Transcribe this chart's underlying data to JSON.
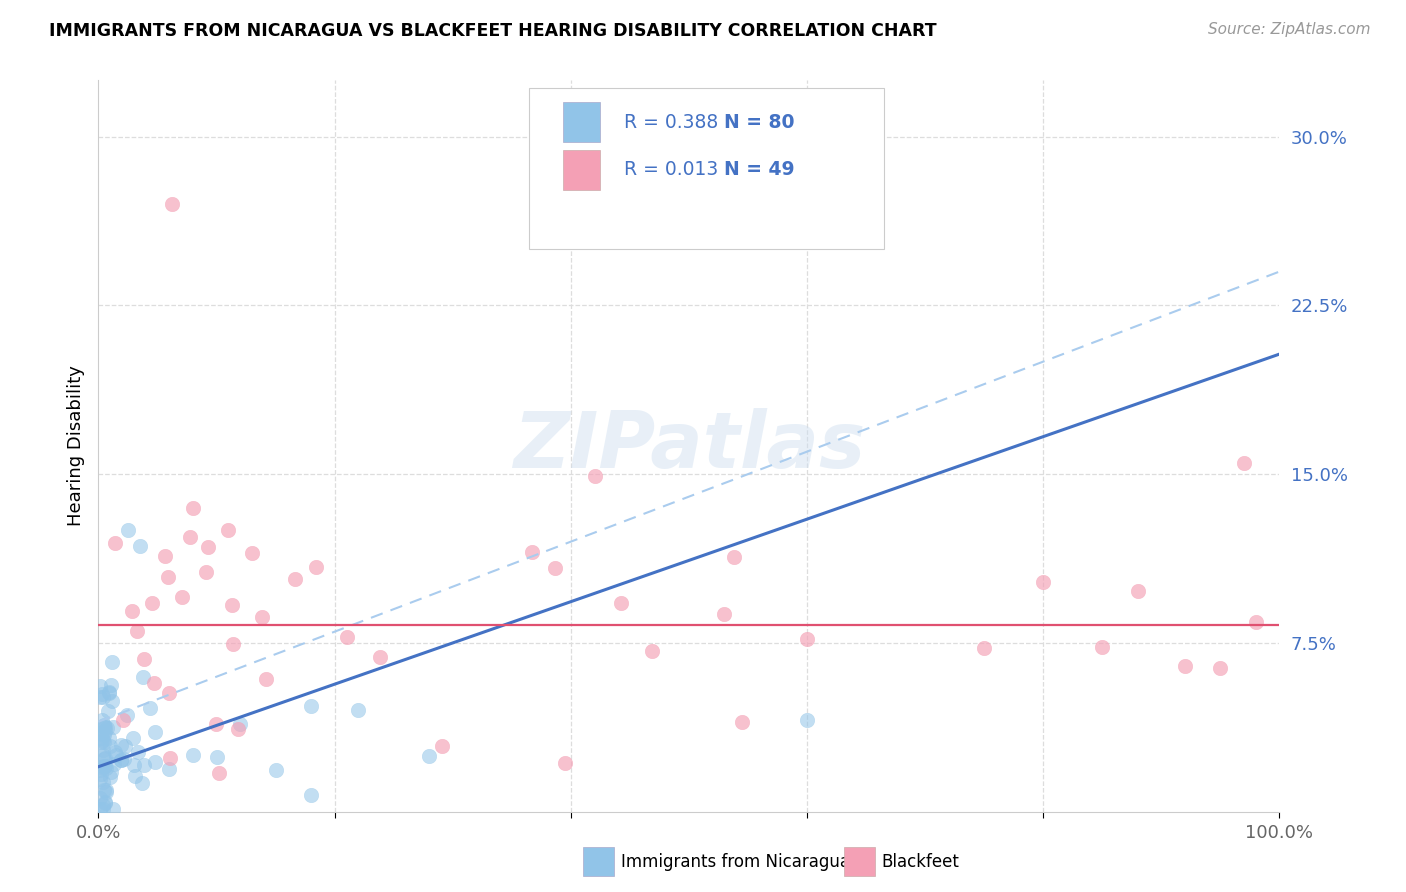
{
  "title": "IMMIGRANTS FROM NICARAGUA VS BLACKFEET HEARING DISABILITY CORRELATION CHART",
  "source": "Source: ZipAtlas.com",
  "ylabel": "Hearing Disability",
  "y_ticks": [
    0.075,
    0.15,
    0.225,
    0.3
  ],
  "x_range": [
    0.0,
    1.0
  ],
  "y_range": [
    0.0,
    0.325
  ],
  "color_blue": "#91c4e8",
  "color_pink": "#f4a0b5",
  "color_blue_line": "#4472c4",
  "color_pink_line": "#e05070",
  "color_dashed": "#aaccee",
  "R_blue": "0.388",
  "N_blue": "80",
  "R_pink": "0.013",
  "N_pink": "49",
  "legend_text_color": "#4472c4",
  "watermark": "ZIPatlas",
  "bottom_legend_blue": "Immigrants from Nicaragua",
  "bottom_legend_pink": "Blackfeet"
}
